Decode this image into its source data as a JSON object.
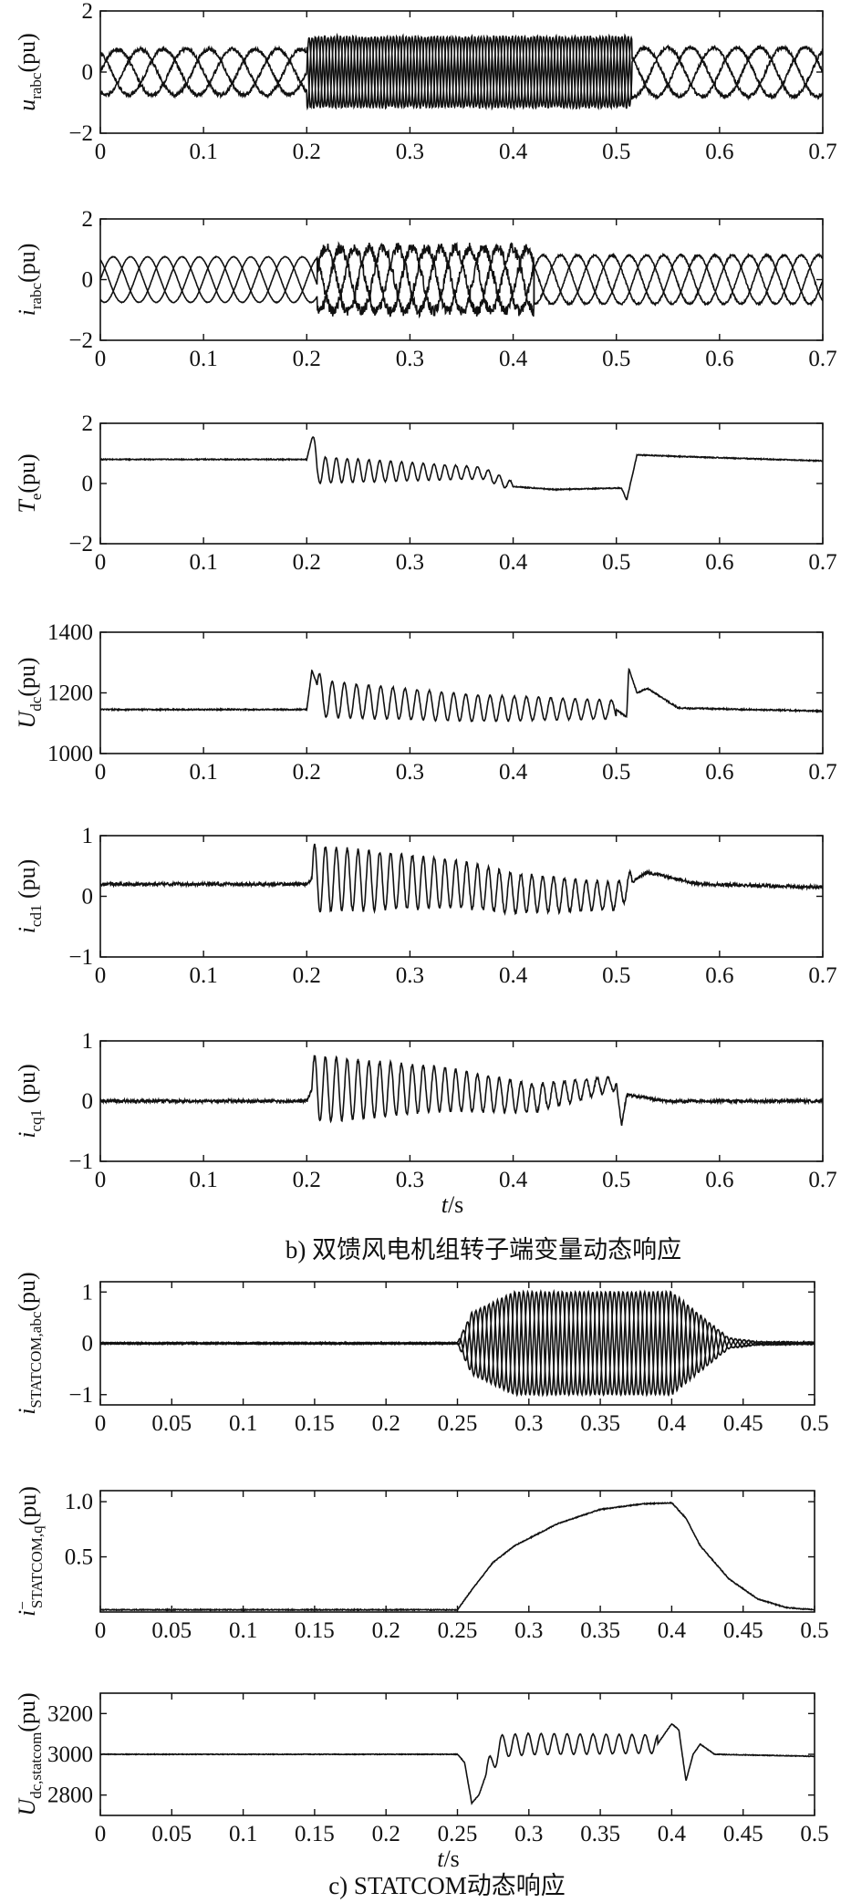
{
  "chart_data": [
    {
      "id": "u_rabc",
      "type": "line",
      "ylabel": {
        "main": "u",
        "sub": "rabc",
        "unit": "(pu)"
      },
      "xlim": [
        0,
        0.7
      ],
      "ylim": [
        -2,
        2
      ],
      "xticks": [
        0,
        0.1,
        0.2,
        0.3,
        0.4,
        0.5,
        0.6,
        0.7
      ],
      "xticklabels": [
        "0",
        "0.1",
        "0.2",
        "0.3",
        "0.4",
        "0.5",
        "0.6",
        "0.7"
      ],
      "yticks": [
        -2,
        0,
        2
      ],
      "yticklabels": [
        "−2",
        "0",
        "2"
      ],
      "xlabel": "",
      "series": [
        {
          "phase": 0,
          "segments": [
            {
              "t0": 0,
              "t1": 0.2,
              "amp": 0.75,
              "freq": 15,
              "noise": 0.12
            },
            {
              "t0": 0.2,
              "t1": 0.515,
              "amp": 1.15,
              "freq": 110,
              "noise": 0.1
            },
            {
              "t0": 0.515,
              "t1": 0.7,
              "amp": 0.8,
              "freq": 15,
              "noise": 0.12
            }
          ]
        },
        {
          "phase": 2.094,
          "segments": [
            {
              "t0": 0,
              "t1": 0.2,
              "amp": 0.75,
              "freq": 15,
              "noise": 0.12
            },
            {
              "t0": 0.2,
              "t1": 0.515,
              "amp": 1.15,
              "freq": 110,
              "noise": 0.1
            },
            {
              "t0": 0.515,
              "t1": 0.7,
              "amp": 0.8,
              "freq": 15,
              "noise": 0.12
            }
          ]
        },
        {
          "phase": 4.189,
          "segments": [
            {
              "t0": 0,
              "t1": 0.2,
              "amp": 0.75,
              "freq": 15,
              "noise": 0.12
            },
            {
              "t0": 0.2,
              "t1": 0.515,
              "amp": 1.15,
              "freq": 110,
              "noise": 0.1
            },
            {
              "t0": 0.515,
              "t1": 0.7,
              "amp": 0.8,
              "freq": 15,
              "noise": 0.12
            }
          ]
        }
      ]
    },
    {
      "id": "i_rabc",
      "type": "line",
      "ylabel": {
        "main": "i",
        "sub": "rabc",
        "unit": "(pu)"
      },
      "xlim": [
        0,
        0.7
      ],
      "ylim": [
        -2,
        2
      ],
      "xticks": [
        0,
        0.1,
        0.2,
        0.3,
        0.4,
        0.5,
        0.6,
        0.7
      ],
      "xticklabels": [
        "0",
        "0.1",
        "0.2",
        "0.3",
        "0.4",
        "0.5",
        "0.6",
        "0.7"
      ],
      "yticks": [
        -2,
        0,
        2
      ],
      "yticklabels": [
        "−2",
        "0",
        "2"
      ],
      "xlabel": "",
      "series": [
        {
          "phase": 0,
          "segments": [
            {
              "t0": 0,
              "t1": 0.21,
              "amp": 0.75,
              "freq": 20,
              "noise": 0.02
            },
            {
              "t0": 0.21,
              "t1": 0.42,
              "amp": 1.05,
              "freq": 24,
              "noise": 0.35
            },
            {
              "t0": 0.42,
              "t1": 0.7,
              "amp": 0.8,
              "freq": 20,
              "noise": 0.06
            }
          ]
        },
        {
          "phase": 2.094,
          "segments": [
            {
              "t0": 0,
              "t1": 0.21,
              "amp": 0.75,
              "freq": 20,
              "noise": 0.02
            },
            {
              "t0": 0.21,
              "t1": 0.42,
              "amp": 1.05,
              "freq": 24,
              "noise": 0.35
            },
            {
              "t0": 0.42,
              "t1": 0.7,
              "amp": 0.8,
              "freq": 20,
              "noise": 0.06
            }
          ]
        },
        {
          "phase": 4.189,
          "segments": [
            {
              "t0": 0,
              "t1": 0.21,
              "amp": 0.75,
              "freq": 20,
              "noise": 0.02
            },
            {
              "t0": 0.21,
              "t1": 0.42,
              "amp": 1.05,
              "freq": 24,
              "noise": 0.35
            },
            {
              "t0": 0.42,
              "t1": 0.7,
              "amp": 0.8,
              "freq": 20,
              "noise": 0.06
            }
          ]
        }
      ]
    },
    {
      "id": "T_e",
      "type": "line",
      "ylabel": {
        "main": "T",
        "sub": "e",
        "unit": "(pu)"
      },
      "xlim": [
        0,
        0.7
      ],
      "ylim": [
        -2,
        2
      ],
      "xticks": [
        0,
        0.1,
        0.2,
        0.3,
        0.4,
        0.5,
        0.6,
        0.7
      ],
      "xticklabels": [
        "0",
        "0.1",
        "0.2",
        "0.3",
        "0.4",
        "0.5",
        "0.6",
        "0.7"
      ],
      "yticks": [
        -2,
        0,
        2
      ],
      "yticklabels": [
        "−2",
        "0",
        "2"
      ],
      "xlabel": "",
      "series": [
        {
          "keypoints": [
            [
              0,
              0.8
            ],
            [
              0.2,
              0.8
            ],
            [
              0.205,
              1.5
            ],
            [
              0.21,
              0.45
            ],
            [
              0.37,
              0.35
            ],
            [
              0.4,
              -0.1
            ],
            [
              0.44,
              -0.2
            ],
            [
              0.505,
              -0.15
            ],
            [
              0.51,
              -0.55
            ],
            [
              0.52,
              0.95
            ],
            [
              0.56,
              0.9
            ],
            [
              0.7,
              0.75
            ]
          ],
          "oscillation": {
            "t0": 0.205,
            "t1": 0.4,
            "amp": 0.45,
            "amp_end": 0.15,
            "freq": 95
          },
          "noise": 0.03
        }
      ]
    },
    {
      "id": "U_dc",
      "type": "line",
      "ylabel": {
        "main": "U",
        "sub": "dc",
        "unit": "(pu)"
      },
      "xlim": [
        0,
        0.7
      ],
      "ylim": [
        1000,
        1400
      ],
      "xticks": [
        0,
        0.1,
        0.2,
        0.3,
        0.4,
        0.5,
        0.6,
        0.7
      ],
      "xticklabels": [
        "0",
        "0.1",
        "0.2",
        "0.3",
        "0.4",
        "0.5",
        "0.6",
        "0.7"
      ],
      "yticks": [
        1000,
        1200,
        1400
      ],
      "yticklabels": [
        "1000",
        "1200",
        "1400"
      ],
      "xlabel": "",
      "series": [
        {
          "keypoints": [
            [
              0,
              1145
            ],
            [
              0.2,
              1145
            ],
            [
              0.205,
              1275
            ],
            [
              0.215,
              1180
            ],
            [
              0.36,
              1150
            ],
            [
              0.5,
              1145
            ],
            [
              0.51,
              1120
            ],
            [
              0.512,
              1280
            ],
            [
              0.52,
              1200
            ],
            [
              0.53,
              1215
            ],
            [
              0.56,
              1150
            ],
            [
              0.7,
              1140
            ]
          ],
          "oscillation": {
            "t0": 0.21,
            "t1": 0.5,
            "amp": 60,
            "amp_end": 30,
            "freq": 85
          },
          "noise": 4
        }
      ]
    },
    {
      "id": "i_cd1",
      "type": "line",
      "ylabel": {
        "main": "i",
        "sub": "cd1",
        "unit": " (pu)"
      },
      "xlim": [
        0,
        0.7
      ],
      "ylim": [
        -1,
        1
      ],
      "xticks": [
        0,
        0.1,
        0.2,
        0.3,
        0.4,
        0.5,
        0.6,
        0.7
      ],
      "xticklabels": [
        "0",
        "0.1",
        "0.2",
        "0.3",
        "0.4",
        "0.5",
        "0.6",
        "0.7"
      ],
      "yticks": [
        -1,
        0,
        1
      ],
      "yticklabels": [
        "−1",
        "0",
        "1"
      ],
      "xlabel": "",
      "series": [
        {
          "keypoints": [
            [
              0,
              0.2
            ],
            [
              0.2,
              0.2
            ],
            [
              0.205,
              0.3
            ],
            [
              0.35,
              0.2
            ],
            [
              0.4,
              0.05
            ],
            [
              0.5,
              0.0
            ],
            [
              0.52,
              0.3
            ],
            [
              0.53,
              0.4
            ],
            [
              0.58,
              0.2
            ],
            [
              0.7,
              0.15
            ]
          ],
          "oscillation": {
            "t0": 0.205,
            "t1": 0.515,
            "amp": 0.55,
            "amp_end": 0.2,
            "freq": 95
          },
          "noise": 0.05
        }
      ]
    },
    {
      "id": "i_cq1",
      "type": "line",
      "ylabel": {
        "main": "i",
        "sub": "cq1",
        "unit": " (pu)"
      },
      "xlim": [
        0,
        0.7
      ],
      "ylim": [
        -1,
        1
      ],
      "xticks": [
        0,
        0.1,
        0.2,
        0.3,
        0.4,
        0.5,
        0.6,
        0.7
      ],
      "xticklabels": [
        "0",
        "0.1",
        "0.2",
        "0.3",
        "0.4",
        "0.5",
        "0.6",
        "0.7"
      ],
      "yticks": [
        -1,
        0,
        1
      ],
      "yticklabels": [
        "−1",
        "0",
        "1"
      ],
      "xlabel": "t/s",
      "series": [
        {
          "keypoints": [
            [
              0,
              0.0
            ],
            [
              0.2,
              0.0
            ],
            [
              0.205,
              0.2
            ],
            [
              0.33,
              0.2
            ],
            [
              0.42,
              0.05
            ],
            [
              0.5,
              0.3
            ],
            [
              0.505,
              -0.4
            ],
            [
              0.51,
              0.1
            ],
            [
              0.55,
              0.0
            ],
            [
              0.7,
              0.0
            ]
          ],
          "oscillation": {
            "t0": 0.205,
            "t1": 0.5,
            "amp": 0.55,
            "amp_end": 0.12,
            "freq": 95
          },
          "noise": 0.05
        }
      ]
    },
    {
      "id": "i_statcom_abc",
      "type": "line",
      "ylabel": {
        "main": "i",
        "sub": "STATCOM,abc",
        "unit": "(pu)"
      },
      "xlim": [
        0,
        0.5
      ],
      "ylim": [
        -1.2,
        1.2
      ],
      "xticks": [
        0,
        0.05,
        0.1,
        0.15,
        0.2,
        0.25,
        0.3,
        0.35,
        0.4,
        0.45,
        0.5
      ],
      "xticklabels": [
        "0",
        "0.05",
        "0.1",
        "0.15",
        "0.2",
        "0.25",
        "0.3",
        "0.35",
        "0.4",
        "0.45",
        "0.5"
      ],
      "yticks": [
        -1,
        0,
        1
      ],
      "yticklabels": [
        "−1",
        "0",
        "1"
      ],
      "xlabel": "",
      "series": [
        {
          "phase": 0,
          "envelope": [
            [
              0,
              0.01
            ],
            [
              0.25,
              0.01
            ],
            [
              0.26,
              0.6
            ],
            [
              0.29,
              1.0
            ],
            [
              0.4,
              1.0
            ],
            [
              0.44,
              0.1
            ],
            [
              0.46,
              0.03
            ],
            [
              0.5,
              0.02
            ]
          ],
          "freq": 110,
          "noise": 0.02
        },
        {
          "phase": 2.094,
          "envelope": [
            [
              0,
              0.01
            ],
            [
              0.25,
              0.01
            ],
            [
              0.26,
              0.6
            ],
            [
              0.29,
              1.0
            ],
            [
              0.4,
              1.0
            ],
            [
              0.44,
              0.1
            ],
            [
              0.46,
              0.03
            ],
            [
              0.5,
              0.02
            ]
          ],
          "freq": 110,
          "noise": 0.02
        },
        {
          "phase": 4.189,
          "envelope": [
            [
              0,
              0.01
            ],
            [
              0.25,
              0.01
            ],
            [
              0.26,
              0.6
            ],
            [
              0.29,
              1.0
            ],
            [
              0.4,
              1.0
            ],
            [
              0.44,
              0.1
            ],
            [
              0.46,
              0.03
            ],
            [
              0.5,
              0.02
            ]
          ],
          "freq": 110,
          "noise": 0.02
        }
      ]
    },
    {
      "id": "i_statcom_q",
      "type": "line",
      "ylabel": {
        "main": "i",
        "sub": "STATCOM,q",
        "sup": "−",
        "unit": "(pu)"
      },
      "xlim": [
        0,
        0.5
      ],
      "ylim": [
        0,
        1.1
      ],
      "xticks": [
        0,
        0.05,
        0.1,
        0.15,
        0.2,
        0.25,
        0.3,
        0.35,
        0.4,
        0.45,
        0.5
      ],
      "xticklabels": [
        "0",
        "0.05",
        "0.1",
        "0.15",
        "0.2",
        "0.25",
        "0.3",
        "0.35",
        "0.4",
        "0.45",
        "0.5"
      ],
      "yticks": [
        0.5,
        1.0
      ],
      "yticklabels": [
        "0.5",
        "1.0"
      ],
      "xlabel": "",
      "series": [
        {
          "keypoints": [
            [
              0,
              0.02
            ],
            [
              0.25,
              0.02
            ],
            [
              0.26,
              0.2
            ],
            [
              0.275,
              0.45
            ],
            [
              0.29,
              0.6
            ],
            [
              0.32,
              0.8
            ],
            [
              0.35,
              0.93
            ],
            [
              0.38,
              0.98
            ],
            [
              0.4,
              0.99
            ],
            [
              0.41,
              0.85
            ],
            [
              0.42,
              0.6
            ],
            [
              0.44,
              0.3
            ],
            [
              0.46,
              0.12
            ],
            [
              0.48,
              0.04
            ],
            [
              0.5,
              0.02
            ]
          ],
          "noise": 0.008
        }
      ]
    },
    {
      "id": "U_dc_statcom",
      "type": "line",
      "ylabel": {
        "main": "U",
        "sub": "dc,statcom",
        "unit": "(pu)"
      },
      "xlim": [
        0,
        0.5
      ],
      "ylim": [
        2700,
        3300
      ],
      "xticks": [
        0,
        0.05,
        0.1,
        0.15,
        0.2,
        0.25,
        0.3,
        0.35,
        0.4,
        0.45,
        0.5
      ],
      "xticklabels": [
        "0",
        "0.05",
        "0.1",
        "0.15",
        "0.2",
        "0.25",
        "0.3",
        "0.35",
        "0.4",
        "0.45",
        "0.5"
      ],
      "yticks": [
        2800,
        3000,
        3200
      ],
      "yticklabels": [
        "2800",
        "3000",
        "3200"
      ],
      "xlabel": "t/s",
      "series": [
        {
          "keypoints": [
            [
              0,
              3000
            ],
            [
              0.25,
              3000
            ],
            [
              0.255,
              2960
            ],
            [
              0.26,
              2760
            ],
            [
              0.265,
              2800
            ],
            [
              0.27,
              2900
            ],
            [
              0.28,
              3040
            ],
            [
              0.3,
              3050
            ],
            [
              0.39,
              3050
            ],
            [
              0.4,
              3150
            ],
            [
              0.405,
              3120
            ],
            [
              0.41,
              2870
            ],
            [
              0.415,
              3000
            ],
            [
              0.42,
              3050
            ],
            [
              0.43,
              3000
            ],
            [
              0.5,
              2990
            ]
          ],
          "oscillation": {
            "t0": 0.27,
            "t1": 0.39,
            "amp": 55,
            "amp_end": 45,
            "freq": 110
          },
          "noise": 3
        }
      ]
    }
  ],
  "captions": {
    "b": "b) 双馈风电机组转子端变量动态响应",
    "c": "c) STATCOM动态响应"
  }
}
